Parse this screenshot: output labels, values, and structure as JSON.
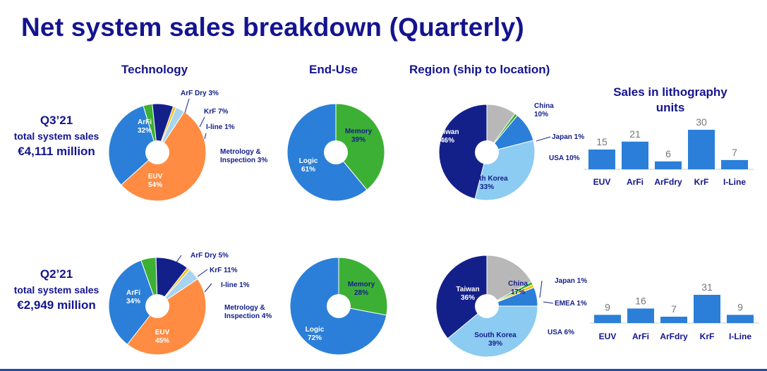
{
  "title": "Net system sales breakdown (Quarterly)",
  "headers": {
    "technology": "Technology",
    "enduse": "End-Use",
    "region": "Region (ship to location)",
    "units": "Sales in lithography units"
  },
  "quarters": [
    {
      "quarter": "Q3’21",
      "line": "total system sales",
      "sales": "€4,111 million"
    },
    {
      "quarter": "Q2’21",
      "line": "total system sales",
      "sales": "€2,949 million"
    }
  ],
  "colors": {
    "title": "#14148f",
    "EUV": "#ff8c42",
    "ArFi": "#2b7fd8",
    "ArF Dry": "#3cb034",
    "KrF": "#14208a",
    "I-line": "#f2c21b",
    "Metrology": "#a8d4f0",
    "Logic": "#2b7fd8",
    "Memory": "#3cb034",
    "Taiwan": "#14208a",
    "China": "#b8b8b8",
    "Japan": "#3cb034",
    "EMEA": "#f2c21b",
    "USA": "#2b7fd8",
    "South Korea": "#8ccbf2",
    "bar": "#2b7fd8",
    "barValue": "#777777"
  },
  "chart_data": [
    {
      "type": "pie",
      "title": "Technology",
      "period": "Q3’21",
      "slices": [
        {
          "name": "ArFi",
          "value": 32,
          "label": [
            "ArFi",
            "32%"
          ]
        },
        {
          "name": "ArF Dry",
          "value": 3,
          "label": [
            "ArF Dry 3%"
          ]
        },
        {
          "name": "KrF",
          "value": 7,
          "label": [
            "KrF 7%"
          ]
        },
        {
          "name": "I-line",
          "value": 1,
          "label": [
            "I-line 1%"
          ]
        },
        {
          "name": "Metrology",
          "value": 3,
          "label": [
            "Metrology &",
            "Inspection 3%"
          ]
        },
        {
          "name": "EUV",
          "value": 54,
          "label": [
            "EUV",
            "54%"
          ]
        }
      ]
    },
    {
      "type": "pie",
      "title": "End-Use",
      "period": "Q3’21",
      "slices": [
        {
          "name": "Memory",
          "value": 39,
          "label": [
            "Memory",
            "39%"
          ]
        },
        {
          "name": "Logic",
          "value": 61,
          "label": [
            "Logic",
            "61%"
          ]
        }
      ]
    },
    {
      "type": "pie",
      "title": "Region (ship to location)",
      "period": "Q3’21",
      "slices": [
        {
          "name": "China",
          "value": 10,
          "label": [
            "China",
            "10%"
          ]
        },
        {
          "name": "Japan",
          "value": 1,
          "label": [
            "Japan 1%"
          ]
        },
        {
          "name": "USA",
          "value": 10,
          "label": [
            "USA 10%"
          ]
        },
        {
          "name": "South Korea",
          "value": 33,
          "label": [
            "South Korea",
            "33%"
          ]
        },
        {
          "name": "Taiwan",
          "value": 46,
          "label": [
            "Taiwan",
            "46%"
          ]
        }
      ]
    },
    {
      "type": "bar",
      "title": "Sales in lithography units",
      "period": "Q3’21",
      "categories": [
        "EUV",
        "ArFi",
        "ArFdry",
        "KrF",
        "I-Line"
      ],
      "values": [
        15,
        21,
        6,
        30,
        7
      ],
      "ylim": [
        0,
        30
      ]
    },
    {
      "type": "pie",
      "title": "Technology",
      "period": "Q2’21",
      "slices": [
        {
          "name": "ArFi",
          "value": 34,
          "label": [
            "ArFi",
            "34%"
          ]
        },
        {
          "name": "ArF Dry",
          "value": 5,
          "label": [
            "ArF Dry 5%"
          ]
        },
        {
          "name": "KrF",
          "value": 11,
          "label": [
            "KrF 11%"
          ]
        },
        {
          "name": "I-line",
          "value": 1,
          "label": [
            "I-line 1%"
          ]
        },
        {
          "name": "Metrology",
          "value": 4,
          "label": [
            "Metrology &",
            "Inspection 4%"
          ]
        },
        {
          "name": "EUV",
          "value": 45,
          "label": [
            "EUV",
            "45%"
          ]
        }
      ]
    },
    {
      "type": "pie",
      "title": "End-Use",
      "period": "Q2’21",
      "slices": [
        {
          "name": "Memory",
          "value": 28,
          "label": [
            "Memory",
            "28%"
          ]
        },
        {
          "name": "Logic",
          "value": 72,
          "label": [
            "Logic",
            "72%"
          ]
        }
      ]
    },
    {
      "type": "pie",
      "title": "Region (ship to location)",
      "period": "Q2’21",
      "slices": [
        {
          "name": "China",
          "value": 17,
          "label": [
            "China",
            "17%"
          ]
        },
        {
          "name": "Japan",
          "value": 1,
          "label": [
            "Japan 1%"
          ]
        },
        {
          "name": "EMEA",
          "value": 1,
          "label": [
            "EMEA 1%"
          ]
        },
        {
          "name": "USA",
          "value": 6,
          "label": [
            "USA 6%"
          ]
        },
        {
          "name": "South Korea",
          "value": 39,
          "label": [
            "South Korea",
            "39%"
          ]
        },
        {
          "name": "Taiwan",
          "value": 36,
          "label": [
            "Taiwan",
            "36%"
          ]
        }
      ]
    },
    {
      "type": "bar",
      "title": "Sales in lithography units",
      "period": "Q2’21",
      "categories": [
        "EUV",
        "ArFi",
        "ArFdry",
        "KrF",
        "I-Line"
      ],
      "values": [
        9,
        16,
        7,
        31,
        9
      ],
      "ylim": [
        0,
        31
      ]
    }
  ]
}
